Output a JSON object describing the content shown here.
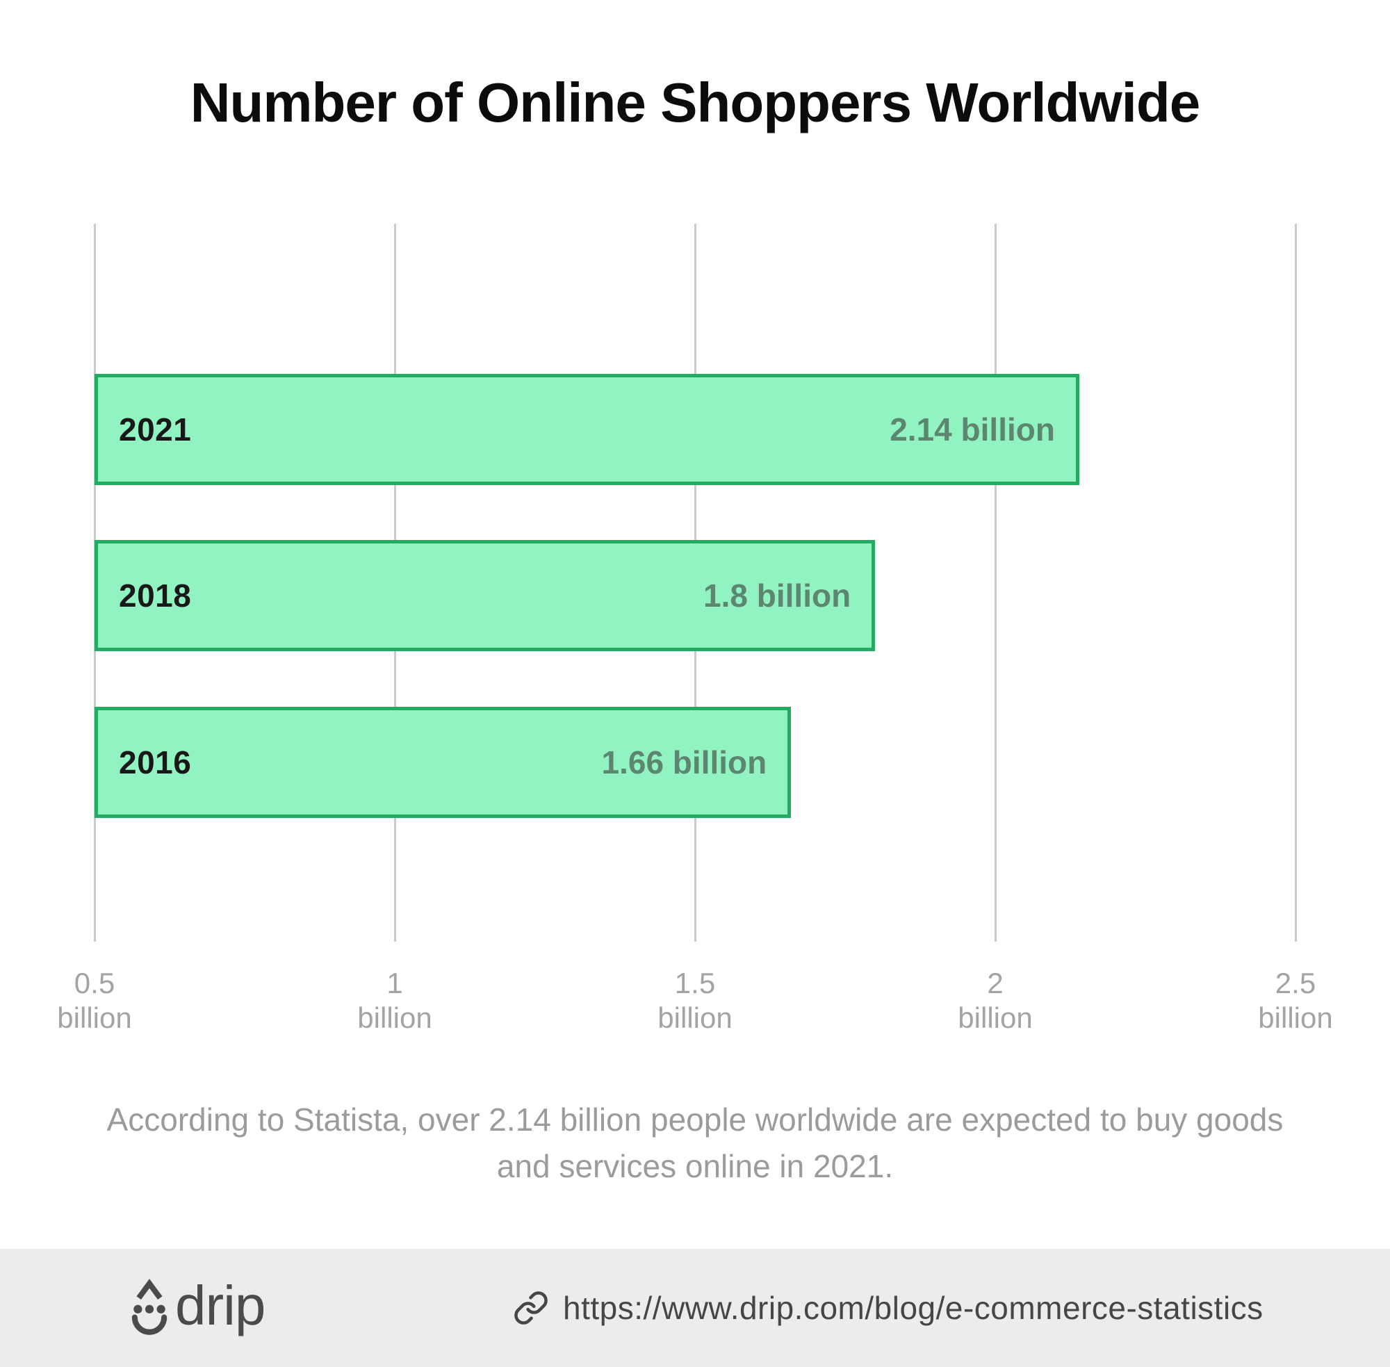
{
  "title": "Number of Online Shoppers Worldwide",
  "chart_data": {
    "type": "bar",
    "orientation": "horizontal",
    "title": "Number of Online Shoppers Worldwide",
    "categories": [
      "2021",
      "2018",
      "2016"
    ],
    "values": [
      2.14,
      1.8,
      1.66
    ],
    "value_labels": [
      "2.14 billion",
      "1.8 billion",
      "1.66 billion"
    ],
    "xlabel": "",
    "ylabel": "",
    "axis": {
      "min": 0.5,
      "max": 2.5,
      "ticks": [
        0.5,
        1,
        1.5,
        2,
        2.5
      ],
      "tick_labels": [
        [
          "0.5",
          "billion"
        ],
        [
          "1",
          "billion"
        ],
        [
          "1.5",
          "billion"
        ],
        [
          "2",
          "billion"
        ],
        [
          "2.5",
          "billion"
        ]
      ]
    },
    "grid": "vertical-only",
    "legend": "none",
    "bar_fill_color": "#92F3C2",
    "bar_border_color": "#22AB61",
    "category_label_color": "#181818",
    "value_label_color": "#5D8671",
    "gridline_color": "#CBCBCB",
    "tick_label_color": "#A3A3A3"
  },
  "caption": "According to Statista, over 2.14 billion people worldwide are expected to buy goods and services online in 2021.",
  "footer": {
    "brand": "drip",
    "url": "https://www.drip.com/blog/e-commerce-statistics",
    "background_color": "#ECECEC",
    "text_color": "#4B4B4B"
  }
}
